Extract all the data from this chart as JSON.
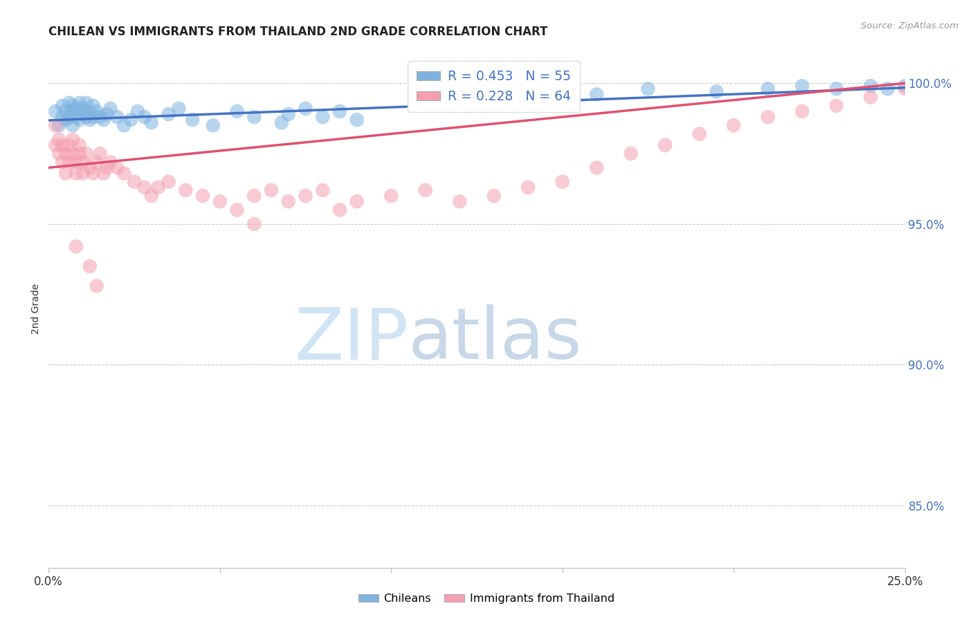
{
  "title": "CHILEAN VS IMMIGRANTS FROM THAILAND 2ND GRADE CORRELATION CHART",
  "source": "Source: ZipAtlas.com",
  "ylabel": "2nd Grade",
  "right_ytick_labels": [
    "100.0%",
    "95.0%",
    "90.0%",
    "85.0%"
  ],
  "right_ytick_values": [
    1.0,
    0.95,
    0.9,
    0.85
  ],
  "xlim": [
    0.0,
    0.25
  ],
  "ylim": [
    0.828,
    1.012
  ],
  "legend_r_blue": "R = 0.453",
  "legend_n_blue": "N = 55",
  "legend_r_pink": "R = 0.228",
  "legend_n_pink": "N = 64",
  "legend_label_blue": "Chileans",
  "legend_label_pink": "Immigrants from Thailand",
  "blue_color": "#7EB3E0",
  "pink_color": "#F4A0B0",
  "blue_line_color": "#4472C4",
  "pink_line_color": "#E05070",
  "background_color": "#FFFFFF",
  "grid_color": "#CCCCCC",
  "watermark_zip": "ZIP",
  "watermark_atlas": "atlas",
  "watermark_color_zip": "#D0E4F5",
  "watermark_color_atlas": "#C8D8E8",
  "blue_x": [
    0.002,
    0.003,
    0.004,
    0.004,
    0.005,
    0.005,
    0.006,
    0.006,
    0.007,
    0.007,
    0.007,
    0.008,
    0.008,
    0.009,
    0.009,
    0.01,
    0.01,
    0.011,
    0.011,
    0.012,
    0.012,
    0.013,
    0.013,
    0.014,
    0.015,
    0.016,
    0.017,
    0.018,
    0.02,
    0.022,
    0.024,
    0.026,
    0.028,
    0.03,
    0.035,
    0.038,
    0.042,
    0.048,
    0.055,
    0.06,
    0.068,
    0.07,
    0.075,
    0.08,
    0.085,
    0.09,
    0.16,
    0.175,
    0.195,
    0.21,
    0.22,
    0.23,
    0.24,
    0.245,
    0.25
  ],
  "blue_y": [
    0.99,
    0.985,
    0.988,
    0.992,
    0.987,
    0.99,
    0.993,
    0.988,
    0.99,
    0.985,
    0.992,
    0.988,
    0.991,
    0.987,
    0.993,
    0.989,
    0.991,
    0.988,
    0.993,
    0.987,
    0.99,
    0.988,
    0.992,
    0.99,
    0.988,
    0.987,
    0.989,
    0.991,
    0.988,
    0.985,
    0.987,
    0.99,
    0.988,
    0.986,
    0.989,
    0.991,
    0.987,
    0.985,
    0.99,
    0.988,
    0.986,
    0.989,
    0.991,
    0.988,
    0.99,
    0.987,
    0.996,
    0.998,
    0.997,
    0.998,
    0.999,
    0.998,
    0.999,
    0.998,
    0.999
  ],
  "pink_x": [
    0.002,
    0.002,
    0.003,
    0.003,
    0.004,
    0.004,
    0.005,
    0.005,
    0.006,
    0.006,
    0.007,
    0.007,
    0.008,
    0.008,
    0.009,
    0.009,
    0.01,
    0.01,
    0.011,
    0.012,
    0.013,
    0.014,
    0.015,
    0.016,
    0.017,
    0.018,
    0.02,
    0.022,
    0.025,
    0.028,
    0.03,
    0.032,
    0.035,
    0.04,
    0.045,
    0.05,
    0.055,
    0.06,
    0.065,
    0.07,
    0.075,
    0.08,
    0.085,
    0.09,
    0.1,
    0.11,
    0.12,
    0.13,
    0.14,
    0.15,
    0.16,
    0.17,
    0.18,
    0.19,
    0.2,
    0.21,
    0.22,
    0.23,
    0.24,
    0.25,
    0.008,
    0.012,
    0.014,
    0.06
  ],
  "pink_y": [
    0.985,
    0.978,
    0.98,
    0.975,
    0.978,
    0.972,
    0.975,
    0.968,
    0.972,
    0.978,
    0.975,
    0.98,
    0.972,
    0.968,
    0.975,
    0.978,
    0.972,
    0.968,
    0.975,
    0.97,
    0.968,
    0.972,
    0.975,
    0.968,
    0.97,
    0.972,
    0.97,
    0.968,
    0.965,
    0.963,
    0.96,
    0.963,
    0.965,
    0.962,
    0.96,
    0.958,
    0.955,
    0.96,
    0.962,
    0.958,
    0.96,
    0.962,
    0.955,
    0.958,
    0.96,
    0.962,
    0.958,
    0.96,
    0.963,
    0.965,
    0.97,
    0.975,
    0.978,
    0.982,
    0.985,
    0.988,
    0.99,
    0.992,
    0.995,
    0.998,
    0.942,
    0.935,
    0.928,
    0.95
  ],
  "blue_trendline": [
    0.9868,
    0.9984
  ],
  "pink_trendline": [
    0.97,
    1.0
  ]
}
